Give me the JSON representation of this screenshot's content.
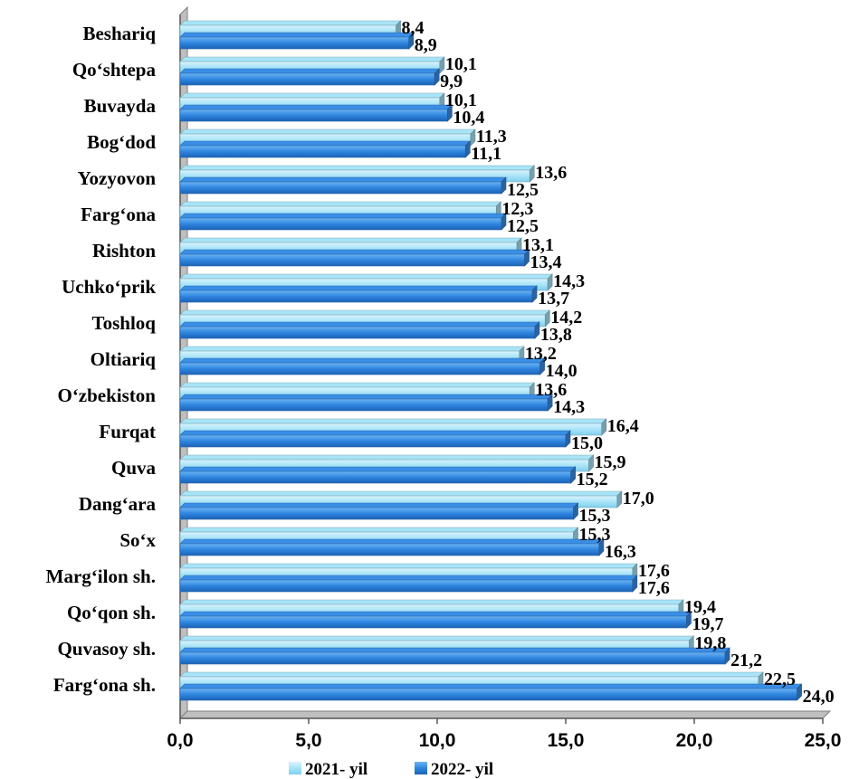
{
  "chart_data": {
    "type": "bar",
    "orientation": "horizontal",
    "categories": [
      "Beshariq",
      "Qo‘shtepa",
      "Buvayda",
      "Bog‘dod",
      "Yozyovon",
      "Farg‘ona",
      "Rishton",
      "Uchko‘prik",
      "Toshloq",
      "Oltiariq",
      "O‘zbekiston",
      "Furqat",
      "Quva",
      "Dang‘ara",
      "So‘x",
      "Marg‘ilon sh.",
      "Qo‘qon sh.",
      "Quvasoy sh.",
      "Farg‘ona sh."
    ],
    "series": [
      {
        "name": "2021- yil",
        "color": "#a8e4f8",
        "values": [
          8.4,
          10.1,
          10.1,
          11.3,
          13.6,
          12.3,
          13.1,
          14.3,
          14.2,
          13.2,
          13.6,
          16.4,
          15.9,
          17.0,
          15.3,
          17.6,
          19.4,
          19.8,
          22.5
        ],
        "labels": [
          "8,4",
          "10,1",
          "10,1",
          "11,3",
          "13,6",
          "12,3",
          "13,1",
          "14,3",
          "14,2",
          "13,2",
          "13,6",
          "16,4",
          "15,9",
          "17,0",
          "15,3",
          "17,6",
          "19,4",
          "19,8",
          "22,5"
        ]
      },
      {
        "name": "2022- yil",
        "color": "#3a8ee6",
        "values": [
          8.9,
          9.9,
          10.4,
          11.1,
          12.5,
          12.5,
          13.4,
          13.7,
          13.8,
          14.0,
          14.3,
          15.0,
          15.2,
          15.3,
          16.3,
          17.6,
          19.7,
          21.2,
          24.0
        ],
        "labels": [
          "8,9",
          "9,9",
          "10,4",
          "11,1",
          "12,5",
          "12,5",
          "13,4",
          "13,7",
          "13,8",
          "14,0",
          "14,3",
          "15,0",
          "15,2",
          "15,3",
          "16,3",
          "17,6",
          "19,7",
          "21,2",
          "24,0"
        ]
      }
    ],
    "xlim": [
      0,
      25
    ],
    "xticks": [
      0,
      5,
      10,
      15,
      20,
      25
    ],
    "xtick_labels": [
      "0,0",
      "5,0",
      "10,0",
      "15,0",
      "20,0",
      "25,0"
    ],
    "grid": false,
    "legend_position": "bottom-center",
    "title": "",
    "xlabel": "",
    "ylabel": ""
  }
}
